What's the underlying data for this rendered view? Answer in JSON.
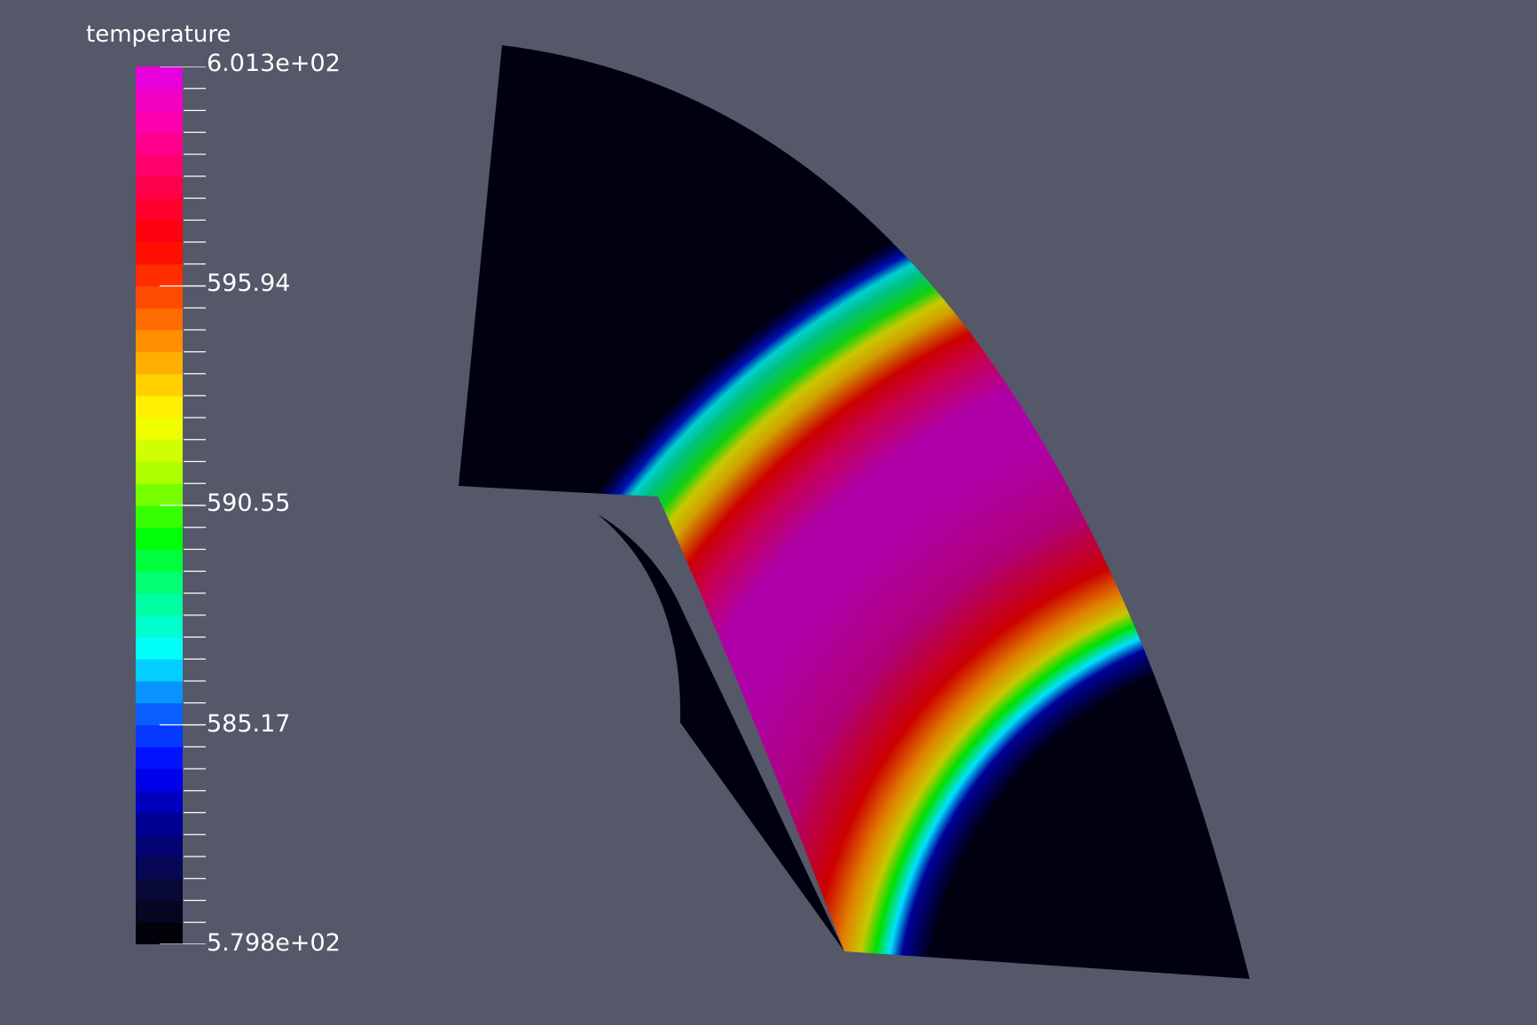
{
  "scalar_bar": {
    "title": "temperature",
    "max_label": "6.013e+02",
    "min_label": "5.798e+02",
    "tick_labels": [
      "595.94",
      "590.55",
      "585.17"
    ],
    "range": [
      579.8,
      601.3
    ],
    "color_stops": [
      "#000000",
      "#0a0a3c",
      "#00008c",
      "#0000ff",
      "#0a64ff",
      "#00ffff",
      "#00ff8c",
      "#00ff00",
      "#aaff00",
      "#ffff00",
      "#ffaa00",
      "#ff5000",
      "#ff0000",
      "#ff0050",
      "#ff00aa",
      "#e100e6"
    ],
    "color_levels": 40
  },
  "render": {
    "background": "#545869",
    "field_name": "temperature",
    "field_colors": {
      "core": "#b000a8",
      "inner_dark": "#000012",
      "outer_dark": "#000012"
    }
  }
}
